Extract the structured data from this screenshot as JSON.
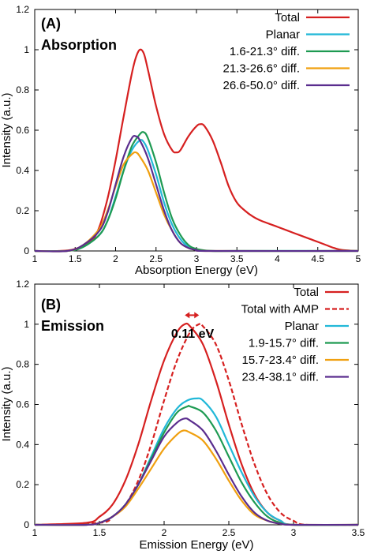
{
  "chart_data": [
    {
      "type": "line",
      "panel_label": "(A)",
      "panel_title": "Absorption",
      "xlabel": "Absorption Energy (eV)",
      "ylabel": "Intensity (a.u.)",
      "xlim": [
        1,
        5
      ],
      "ylim": [
        0,
        1.2
      ],
      "xticks": [
        "1",
        "1.5",
        "2",
        "2.5",
        "3",
        "3.5",
        "4",
        "4.5",
        "5"
      ],
      "yticks": [
        "0",
        "0.2",
        "0.4",
        "0.6",
        "0.8",
        "1",
        "1.2"
      ],
      "legend_position": "top-right",
      "series": [
        {
          "name": "Total",
          "color": "#d62020",
          "dash": false,
          "x": [
            1.0,
            1.3,
            1.5,
            1.7,
            1.8,
            1.9,
            2.0,
            2.1,
            2.2,
            2.25,
            2.3,
            2.35,
            2.4,
            2.5,
            2.6,
            2.7,
            2.75,
            2.8,
            2.9,
            3.0,
            3.05,
            3.1,
            3.2,
            3.3,
            3.4,
            3.5,
            3.6,
            3.7,
            3.8,
            4.0,
            4.2,
            4.4,
            4.5,
            4.6,
            4.7,
            4.8,
            5.0
          ],
          "y": [
            0.0,
            0.0,
            0.01,
            0.05,
            0.12,
            0.26,
            0.45,
            0.67,
            0.88,
            0.96,
            1.0,
            0.98,
            0.9,
            0.72,
            0.58,
            0.5,
            0.49,
            0.5,
            0.57,
            0.62,
            0.63,
            0.62,
            0.55,
            0.44,
            0.32,
            0.24,
            0.2,
            0.17,
            0.15,
            0.12,
            0.09,
            0.06,
            0.045,
            0.03,
            0.015,
            0.005,
            0.0
          ]
        },
        {
          "name": "Planar",
          "color": "#22b8d8",
          "dash": false,
          "x": [
            1.0,
            1.4,
            1.6,
            1.8,
            1.9,
            2.0,
            2.1,
            2.2,
            2.3,
            2.35,
            2.4,
            2.5,
            2.6,
            2.7,
            2.8,
            2.9,
            3.0,
            3.2,
            3.5,
            5.0
          ],
          "y": [
            0.0,
            0.0,
            0.02,
            0.08,
            0.15,
            0.27,
            0.4,
            0.5,
            0.55,
            0.54,
            0.5,
            0.38,
            0.24,
            0.13,
            0.06,
            0.02,
            0.005,
            0.0,
            0.0,
            0.0
          ]
        },
        {
          "name": "1.6-21.3° diff.",
          "color": "#1e9a52",
          "dash": false,
          "x": [
            1.0,
            1.4,
            1.6,
            1.8,
            1.9,
            2.0,
            2.1,
            2.2,
            2.3,
            2.35,
            2.4,
            2.5,
            2.6,
            2.7,
            2.8,
            2.9,
            3.0,
            3.2,
            3.5,
            5.0
          ],
          "y": [
            0.0,
            0.0,
            0.02,
            0.08,
            0.15,
            0.26,
            0.4,
            0.52,
            0.58,
            0.59,
            0.56,
            0.44,
            0.29,
            0.16,
            0.08,
            0.03,
            0.01,
            0.0,
            0.0,
            0.0
          ]
        },
        {
          "name": "21.3-26.6° diff.",
          "color": "#f0a010",
          "dash": false,
          "x": [
            1.0,
            1.4,
            1.6,
            1.8,
            1.9,
            2.0,
            2.1,
            2.2,
            2.25,
            2.3,
            2.4,
            2.5,
            2.6,
            2.7,
            2.8,
            2.9,
            3.0,
            3.2,
            5.0
          ],
          "y": [
            0.0,
            0.0,
            0.03,
            0.11,
            0.2,
            0.32,
            0.43,
            0.48,
            0.49,
            0.47,
            0.4,
            0.29,
            0.18,
            0.1,
            0.04,
            0.015,
            0.005,
            0.0,
            0.0
          ]
        },
        {
          "name": "26.6-50.0° diff.",
          "color": "#5a2d8e",
          "dash": false,
          "x": [
            1.0,
            1.4,
            1.6,
            1.8,
            1.9,
            2.0,
            2.1,
            2.2,
            2.25,
            2.3,
            2.4,
            2.5,
            2.6,
            2.7,
            2.8,
            2.9,
            3.0,
            3.2,
            5.0
          ],
          "y": [
            0.0,
            0.0,
            0.03,
            0.1,
            0.19,
            0.33,
            0.47,
            0.56,
            0.57,
            0.55,
            0.46,
            0.33,
            0.2,
            0.1,
            0.04,
            0.015,
            0.005,
            0.0,
            0.0
          ]
        }
      ]
    },
    {
      "type": "line",
      "panel_label": "(B)",
      "panel_title": "Emission",
      "xlabel": "Emission Energy (eV)",
      "ylabel": "Intensity (a.u.)",
      "xlim": [
        1,
        3.5
      ],
      "ylim": [
        0,
        1.2
      ],
      "xticks": [
        "1",
        "1.5",
        "2",
        "2.5",
        "3",
        "3.5"
      ],
      "yticks": [
        "0",
        "0.2",
        "0.4",
        "0.6",
        "0.8",
        "1",
        "1.2"
      ],
      "legend_position": "top-right",
      "annotation": {
        "text": "0.11 eV",
        "from_x": 2.16,
        "to_x": 2.27,
        "y": 1.045
      },
      "series": [
        {
          "name": "Total",
          "color": "#d62020",
          "dash": false,
          "x": [
            1.0,
            1.4,
            1.5,
            1.6,
            1.7,
            1.8,
            1.9,
            2.0,
            2.1,
            2.16,
            2.2,
            2.3,
            2.4,
            2.5,
            2.6,
            2.7,
            2.8,
            2.9,
            3.0,
            3.5
          ],
          "y": [
            0.0,
            0.01,
            0.04,
            0.1,
            0.22,
            0.4,
            0.62,
            0.82,
            0.96,
            1.0,
            0.99,
            0.9,
            0.72,
            0.5,
            0.3,
            0.15,
            0.06,
            0.02,
            0.0,
            0.0
          ]
        },
        {
          "name": "Total with AMP",
          "color": "#d62020",
          "dash": true,
          "x": [
            1.0,
            1.5,
            1.6,
            1.7,
            1.8,
            1.9,
            2.0,
            2.1,
            2.2,
            2.27,
            2.3,
            2.4,
            2.5,
            2.6,
            2.7,
            2.8,
            2.9,
            3.0,
            3.1,
            3.5
          ],
          "y": [
            0.0,
            0.01,
            0.04,
            0.1,
            0.22,
            0.4,
            0.62,
            0.82,
            0.96,
            1.0,
            0.99,
            0.9,
            0.72,
            0.5,
            0.3,
            0.15,
            0.06,
            0.02,
            0.0,
            0.0
          ]
        },
        {
          "name": "Planar",
          "color": "#22b8d8",
          "dash": false,
          "x": [
            1.0,
            1.4,
            1.5,
            1.6,
            1.7,
            1.8,
            1.9,
            2.0,
            2.1,
            2.18,
            2.25,
            2.3,
            2.4,
            2.5,
            2.6,
            2.7,
            2.8,
            2.9,
            3.0,
            3.5
          ],
          "y": [
            0.0,
            0.0,
            0.01,
            0.04,
            0.1,
            0.2,
            0.34,
            0.48,
            0.58,
            0.62,
            0.63,
            0.62,
            0.54,
            0.4,
            0.26,
            0.14,
            0.06,
            0.02,
            0.0,
            0.0
          ]
        },
        {
          "name": "1.9-15.7° diff.",
          "color": "#1e9a52",
          "dash": false,
          "x": [
            1.0,
            1.4,
            1.5,
            1.6,
            1.7,
            1.8,
            1.9,
            2.0,
            2.1,
            2.18,
            2.2,
            2.3,
            2.4,
            2.5,
            2.6,
            2.7,
            2.8,
            2.9,
            3.0,
            3.5
          ],
          "y": [
            0.0,
            0.0,
            0.01,
            0.04,
            0.1,
            0.2,
            0.33,
            0.46,
            0.56,
            0.59,
            0.59,
            0.56,
            0.47,
            0.34,
            0.21,
            0.11,
            0.04,
            0.01,
            0.0,
            0.0
          ]
        },
        {
          "name": "15.7-23.4° diff.",
          "color": "#f0a010",
          "dash": false,
          "x": [
            1.0,
            1.4,
            1.5,
            1.6,
            1.7,
            1.8,
            1.9,
            2.0,
            2.1,
            2.15,
            2.2,
            2.3,
            2.4,
            2.5,
            2.6,
            2.7,
            2.8,
            2.9,
            3.0,
            3.5
          ],
          "y": [
            0.0,
            0.0,
            0.01,
            0.04,
            0.09,
            0.18,
            0.28,
            0.38,
            0.45,
            0.47,
            0.46,
            0.42,
            0.33,
            0.22,
            0.12,
            0.05,
            0.02,
            0.005,
            0.0,
            0.0
          ]
        },
        {
          "name": "23.4-38.1° diff.",
          "color": "#5a2d8e",
          "dash": false,
          "x": [
            1.0,
            1.4,
            1.5,
            1.6,
            1.7,
            1.8,
            1.9,
            2.0,
            2.1,
            2.16,
            2.2,
            2.3,
            2.4,
            2.5,
            2.6,
            2.7,
            2.8,
            2.9,
            3.0,
            3.5
          ],
          "y": [
            0.0,
            0.0,
            0.01,
            0.04,
            0.1,
            0.2,
            0.32,
            0.44,
            0.51,
            0.53,
            0.52,
            0.47,
            0.37,
            0.25,
            0.14,
            0.06,
            0.02,
            0.005,
            0.0,
            0.0
          ]
        }
      ]
    }
  ]
}
